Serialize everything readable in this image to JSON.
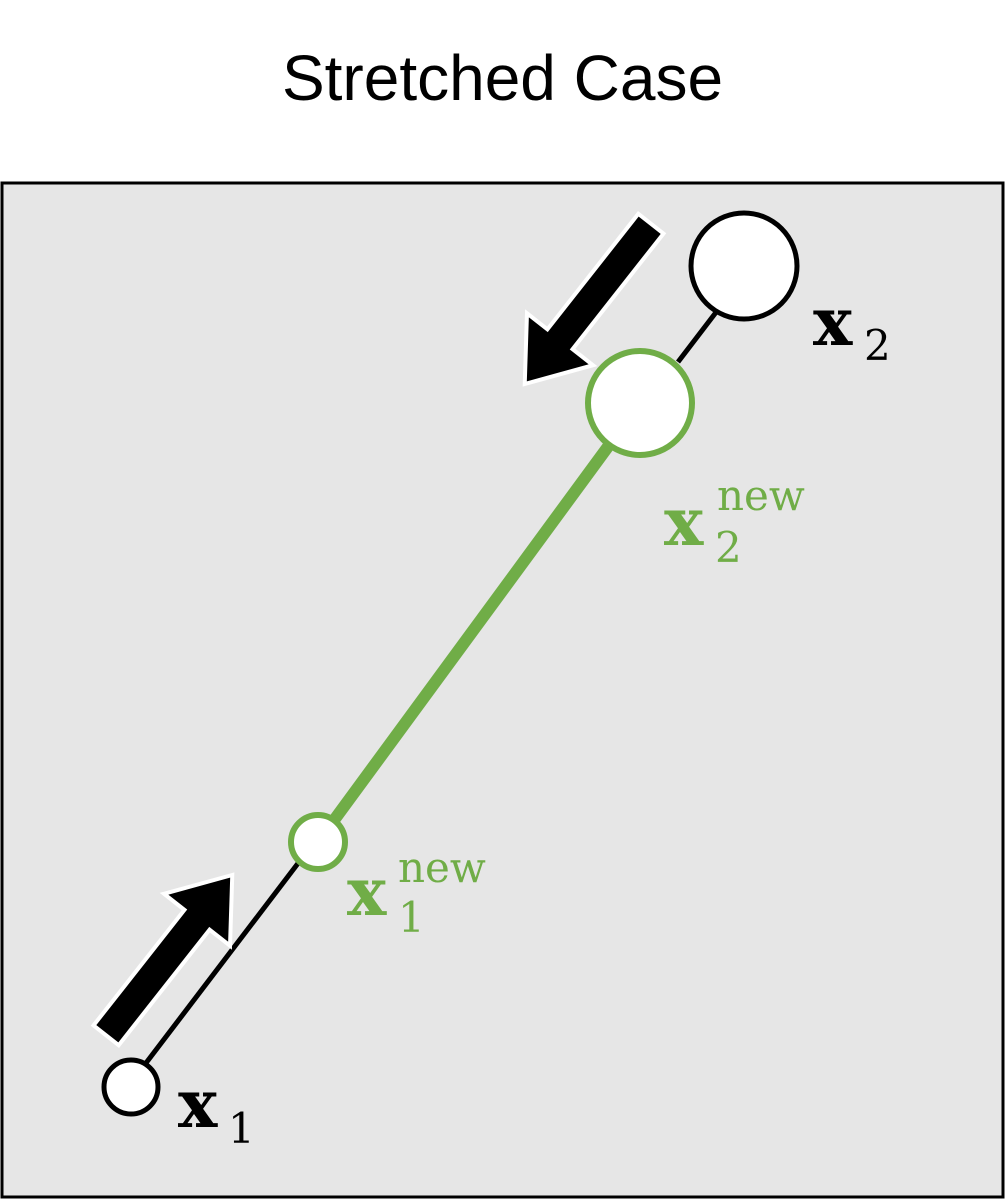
{
  "title": "Stretched Case",
  "colors": {
    "background": "#e6e6e6",
    "frame": "#000000",
    "new_constraint": "#70ad47",
    "old_constraint": "#000000",
    "particle_fill": "#ffffff",
    "arrow": "#000000"
  },
  "labels": {
    "x1": {
      "base": "x",
      "sub": "1"
    },
    "x2": {
      "base": "x",
      "sub": "2"
    },
    "x1_new": {
      "base": "x",
      "sub": "1",
      "sup": "new"
    },
    "x2_new": {
      "base": "x",
      "sub": "2",
      "sup": "new"
    }
  },
  "icons": {
    "arrow_x1": "arrow-up-right-icon",
    "arrow_x2": "arrow-down-left-icon"
  }
}
